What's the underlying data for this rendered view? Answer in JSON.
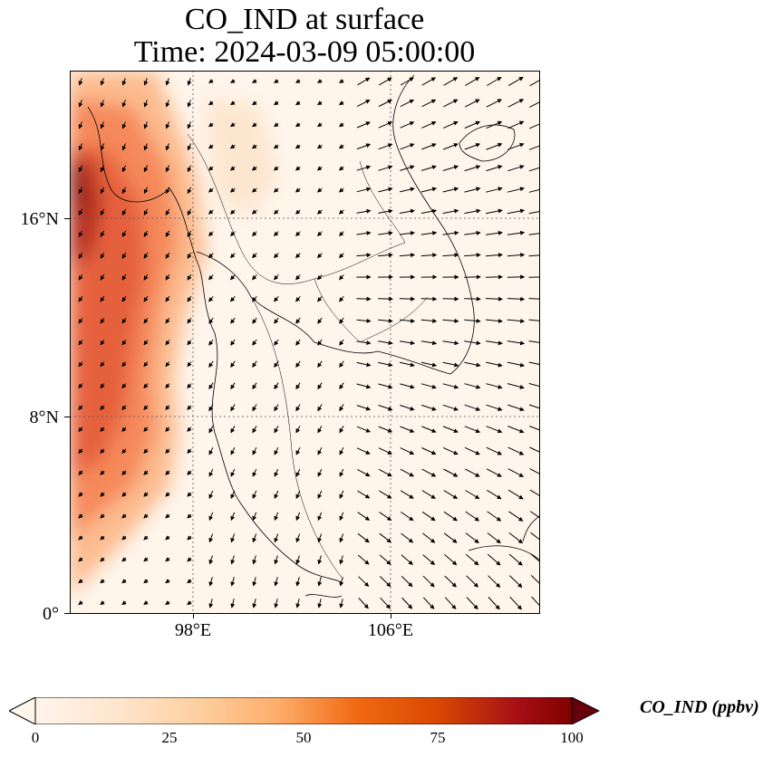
{
  "title": {
    "line1": "CO_IND at surface",
    "line2": "Time: 2024-03-09 05:00:00"
  },
  "map": {
    "lat_ticks": [
      {
        "label": "16°N",
        "value": 16
      },
      {
        "label": "8°N",
        "value": 8
      },
      {
        "label": "0°",
        "value": 0
      }
    ],
    "lon_ticks": [
      {
        "label": "98°E",
        "value": 98
      },
      {
        "label": "106°E",
        "value": 106
      }
    ],
    "extent": {
      "lon_min": 93,
      "lon_max": 112,
      "lat_min": 0,
      "lat_max": 22
    },
    "gridlines": "dotted"
  },
  "colorbar": {
    "label": "CO_IND (ppbv)",
    "min": 0,
    "max": 100,
    "extend": "both",
    "ticks": [
      "0",
      "25",
      "50",
      "75",
      "100"
    ],
    "colormap": [
      "#fff5eb",
      "#fee6ce",
      "#fdd0a2",
      "#fdae6b",
      "#fd8d3c",
      "#f16913",
      "#d94801",
      "#a63603",
      "#7f2704"
    ]
  },
  "colors": {
    "coast": "#000000",
    "background_low": "#fff5eb",
    "plume_high": "#a50f15"
  }
}
